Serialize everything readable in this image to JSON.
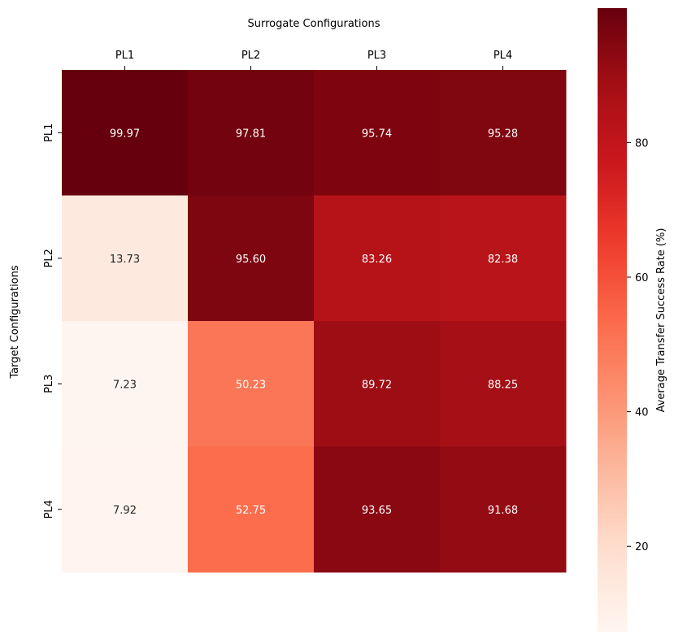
{
  "chart_data": {
    "type": "heatmap",
    "x_title": "Surrogate Configurations",
    "y_title": "Target Configurations",
    "x_categories": [
      "PL1",
      "PL2",
      "PL3",
      "PL4"
    ],
    "y_categories": [
      "PL1",
      "PL2",
      "PL3",
      "PL4"
    ],
    "values": [
      [
        99.97,
        97.81,
        95.74,
        95.28
      ],
      [
        13.73,
        95.6,
        83.26,
        82.38
      ],
      [
        7.23,
        50.23,
        89.72,
        88.25
      ],
      [
        7.92,
        52.75,
        93.65,
        91.68
      ]
    ],
    "cell_labels": [
      [
        "99.97",
        "97.81",
        "95.74",
        "95.28"
      ],
      [
        "13.73",
        "95.60",
        "83.26",
        "82.38"
      ],
      [
        "7.23",
        "50.23",
        "89.72",
        "88.25"
      ],
      [
        "7.92",
        "52.75",
        "93.65",
        "91.68"
      ]
    ],
    "colorbar": {
      "label": "Average Transfer Success Rate (%)",
      "range": [
        7.23,
        99.97
      ],
      "ticks": [
        20,
        40,
        60,
        80
      ],
      "tick_labels": [
        "20",
        "40",
        "60",
        "80"
      ],
      "colormap": "Reds"
    },
    "x_axis_position": "top"
  }
}
